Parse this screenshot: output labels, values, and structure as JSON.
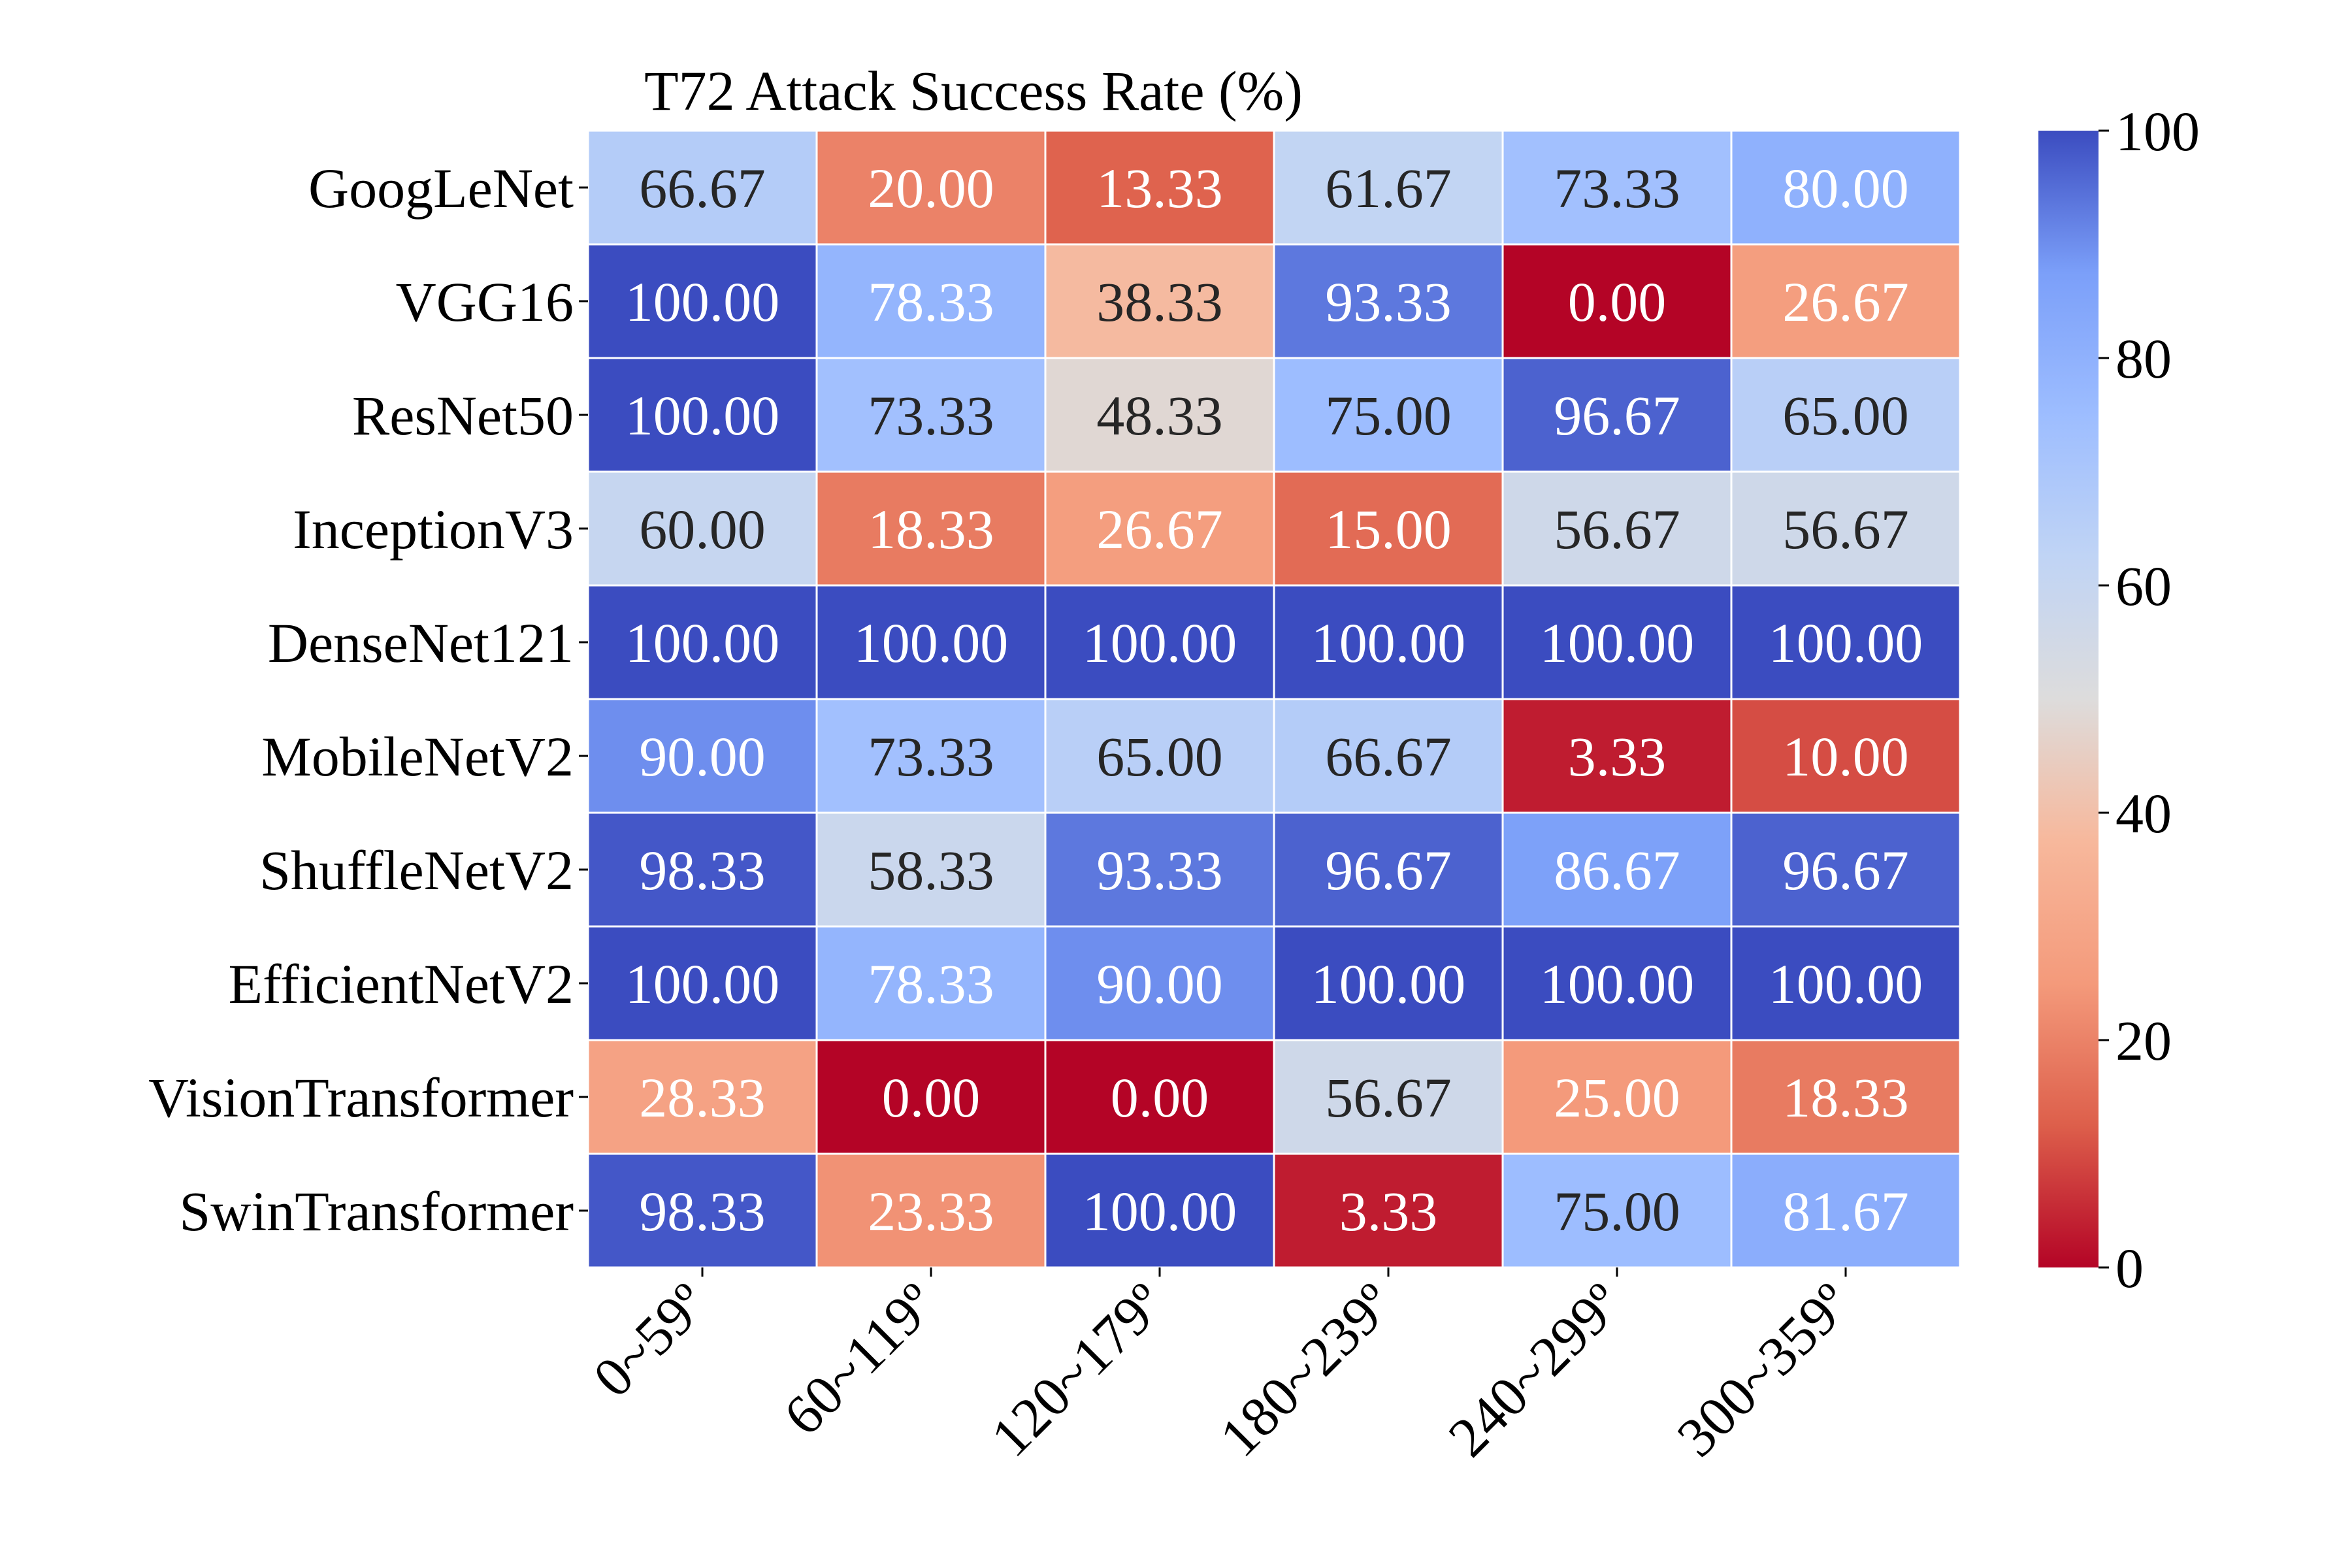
{
  "chart_data": {
    "type": "heatmap",
    "title": "T72 Attack Success Rate (%)",
    "xlabel": "",
    "ylabel": "",
    "columns": [
      "0~59º",
      "60~119º",
      "120~179º",
      "180~239º",
      "240~299º",
      "300~359º"
    ],
    "rows": [
      "GoogLeNet",
      "VGG16",
      "ResNet50",
      "InceptionV3",
      "DenseNet121",
      "MobileNetV2",
      "ShuffleNetV2",
      "EfficientNetV2",
      "VisionTransformer",
      "SwinTransformer"
    ],
    "values": [
      [
        66.67,
        20.0,
        13.33,
        61.67,
        73.33,
        80.0
      ],
      [
        100.0,
        78.33,
        38.33,
        93.33,
        0.0,
        26.67
      ],
      [
        100.0,
        73.33,
        48.33,
        75.0,
        96.67,
        65.0
      ],
      [
        60.0,
        18.33,
        26.67,
        15.0,
        56.67,
        56.67
      ],
      [
        100.0,
        100.0,
        100.0,
        100.0,
        100.0,
        100.0
      ],
      [
        90.0,
        73.33,
        65.0,
        66.67,
        3.33,
        10.0
      ],
      [
        98.33,
        58.33,
        93.33,
        96.67,
        86.67,
        96.67
      ],
      [
        100.0,
        78.33,
        90.0,
        100.0,
        100.0,
        100.0
      ],
      [
        28.33,
        0.0,
        0.0,
        56.67,
        25.0,
        18.33
      ],
      [
        98.33,
        23.33,
        100.0,
        3.33,
        75.0,
        81.67
      ]
    ],
    "colormap": "coolwarm_r",
    "vmin": 0,
    "vmax": 100,
    "colorbar_ticks": [
      0,
      20,
      40,
      60,
      80,
      100
    ],
    "value_format": "2 decimals",
    "grid": false,
    "colorbar_placement": "right"
  }
}
